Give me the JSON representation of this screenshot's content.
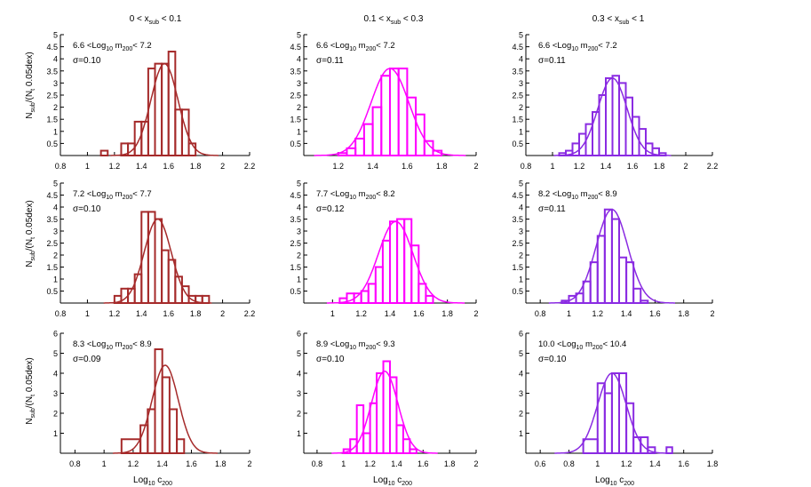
{
  "figure": {
    "ylabel_main": "N",
    "ylabel_sub": "sub",
    "ylabel_tail": "/(N",
    "ylabel_sub2": "t",
    "ylabel_end": " 0.05dex)",
    "xlabel_main": "Log",
    "xlabel_sub": "10",
    "xlabel_end": " c",
    "xlabel_sub2": "200"
  },
  "column_titles": [
    {
      "pre": "0 < x",
      "sub": "sub",
      "post": " < 0.1"
    },
    {
      "pre": "0.1 < x",
      "sub": "sub",
      "post": " < 0.3"
    },
    {
      "pre": "0.3 < x",
      "sub": "sub",
      "post": " < 1"
    }
  ],
  "colors": {
    "col0": "#a52a2a",
    "col1": "#ff00ff",
    "col2": "#8a2be2"
  },
  "chart_data": [
    {
      "type": "bar",
      "row": 0,
      "col": 0,
      "xlim": [
        0.8,
        2.2
      ],
      "ylim": [
        0,
        5
      ],
      "xticks": [
        0.8,
        1,
        1.2,
        1.4,
        1.6,
        1.8,
        2,
        2.2
      ],
      "yticks": [
        0.5,
        1,
        1.5,
        2,
        2.5,
        3,
        3.5,
        4,
        4.5,
        5
      ],
      "range_label": {
        "lo": "6.6 <Log",
        "lo_sub": "10",
        "mid": " m",
        "mid_sub": "200",
        "hi": "< 7.2"
      },
      "sigma": "σ=0.10",
      "sigma_value": 0.1,
      "mean": 1.57,
      "amp": 3.8,
      "bin_edges": [
        1.1,
        1.15,
        1.2,
        1.25,
        1.3,
        1.35,
        1.4,
        1.45,
        1.5,
        1.55,
        1.6,
        1.65,
        1.7,
        1.75,
        1.8
      ],
      "values": [
        0.2,
        0,
        0,
        0.5,
        0.5,
        1.4,
        1.4,
        3.6,
        3.8,
        3.8,
        4.3,
        1.9,
        1.9,
        0.5
      ]
    },
    {
      "type": "bar",
      "row": 0,
      "col": 1,
      "xlim": [
        1,
        2
      ],
      "ylim": [
        0,
        5
      ],
      "xticks": [
        1.2,
        1.4,
        1.6,
        1.8,
        2
      ],
      "yticks": [
        0.5,
        1,
        1.5,
        2,
        2.5,
        3,
        3.5,
        4,
        4.5,
        5
      ],
      "range_label": {
        "lo": "6.6 <Log",
        "lo_sub": "10",
        "mid": " m",
        "mid_sub": "200",
        "hi": "< 7.2"
      },
      "sigma": "σ=0.11",
      "sigma_value": 0.11,
      "mean": 1.5,
      "amp": 3.6,
      "bin_edges": [
        1.2,
        1.25,
        1.3,
        1.35,
        1.4,
        1.45,
        1.5,
        1.55,
        1.6,
        1.65,
        1.7,
        1.75,
        1.8
      ],
      "values": [
        0.1,
        0.3,
        0.7,
        1.3,
        2.0,
        3.3,
        3.6,
        3.6,
        2.4,
        1.7,
        0.6,
        0.2
      ]
    },
    {
      "type": "bar",
      "row": 0,
      "col": 2,
      "xlim": [
        0.8,
        2.2
      ],
      "ylim": [
        0,
        5
      ],
      "xticks": [
        0.8,
        1,
        1.2,
        1.4,
        1.6,
        1.8,
        2,
        2.2
      ],
      "yticks": [
        0.5,
        1,
        1.5,
        2,
        2.5,
        3,
        3.5,
        4,
        4.5,
        5
      ],
      "range_label": {
        "lo": "6.6 <Log",
        "lo_sub": "10",
        "mid": " m",
        "mid_sub": "200",
        "hi": "< 7.2"
      },
      "sigma": "σ=0.11",
      "sigma_value": 0.11,
      "mean": 1.45,
      "amp": 3.2,
      "bin_edges": [
        1.05,
        1.1,
        1.15,
        1.2,
        1.25,
        1.3,
        1.35,
        1.4,
        1.45,
        1.5,
        1.55,
        1.6,
        1.65,
        1.7,
        1.75,
        1.8,
        1.85
      ],
      "values": [
        0.1,
        0.2,
        0.5,
        0.9,
        1.3,
        1.8,
        2.5,
        3.2,
        3.3,
        3.0,
        2.4,
        1.6,
        1.1,
        0.5,
        0.3,
        0.1
      ]
    },
    {
      "type": "bar",
      "row": 1,
      "col": 0,
      "xlim": [
        0.8,
        2.2
      ],
      "ylim": [
        0,
        5
      ],
      "xticks": [
        0.8,
        1,
        1.2,
        1.4,
        1.6,
        1.8,
        2,
        2.2
      ],
      "yticks": [
        0.5,
        1,
        1.5,
        2,
        2.5,
        3,
        3.5,
        4,
        4.5,
        5
      ],
      "range_label": {
        "lo": "7.2 <Log",
        "lo_sub": "10",
        "mid": " m",
        "mid_sub": "200",
        "hi": "< 7.7"
      },
      "sigma": "σ=0.10",
      "sigma_value": 0.1,
      "mean": 1.52,
      "amp": 3.5,
      "bin_edges": [
        1.2,
        1.25,
        1.3,
        1.35,
        1.4,
        1.45,
        1.5,
        1.55,
        1.6,
        1.65,
        1.7,
        1.75,
        1.8,
        1.85,
        1.9
      ],
      "values": [
        0.3,
        0.6,
        0.6,
        1.2,
        3.8,
        3.8,
        3.5,
        2.2,
        1.8,
        1.1,
        0.7,
        0.3,
        0.3,
        0.3
      ]
    },
    {
      "type": "bar",
      "row": 1,
      "col": 1,
      "xlim": [
        0.8,
        2
      ],
      "ylim": [
        0,
        5
      ],
      "xticks": [
        1,
        1.2,
        1.4,
        1.6,
        1.8,
        2
      ],
      "yticks": [
        0.5,
        1,
        1.5,
        2,
        2.5,
        3,
        3.5,
        4,
        4.5,
        5
      ],
      "range_label": {
        "lo": "7.7 <Log",
        "lo_sub": "10",
        "mid": " m",
        "mid_sub": "200",
        "hi": "< 8.2"
      },
      "sigma": "σ=0.12",
      "sigma_value": 0.12,
      "mean": 1.44,
      "amp": 3.4,
      "bin_edges": [
        1.05,
        1.1,
        1.15,
        1.2,
        1.25,
        1.3,
        1.35,
        1.4,
        1.45,
        1.5,
        1.55,
        1.6,
        1.65,
        1.7
      ],
      "values": [
        0.2,
        0.4,
        0.4,
        0.5,
        0.8,
        1.5,
        2.6,
        3.4,
        3.5,
        3.5,
        2.4,
        0.8,
        0.3
      ]
    },
    {
      "type": "bar",
      "row": 1,
      "col": 2,
      "xlim": [
        0.7,
        2
      ],
      "ylim": [
        0,
        5
      ],
      "xticks": [
        0.8,
        1,
        1.2,
        1.4,
        1.6,
        1.8,
        2
      ],
      "yticks": [
        0.5,
        1,
        1.5,
        2,
        2.5,
        3,
        3.5,
        4,
        4.5,
        5
      ],
      "range_label": {
        "lo": "8.2 <Log",
        "lo_sub": "10",
        "mid": " m",
        "mid_sub": "200",
        "hi": "< 8.9"
      },
      "sigma": "σ=0.11",
      "sigma_value": 0.11,
      "mean": 1.3,
      "amp": 3.9,
      "bin_edges": [
        0.95,
        1.0,
        1.05,
        1.1,
        1.15,
        1.2,
        1.25,
        1.3,
        1.35,
        1.4,
        1.45,
        1.5,
        1.55
      ],
      "values": [
        0.1,
        0.3,
        0.4,
        0.9,
        1.7,
        2.8,
        3.9,
        3.5,
        1.9,
        1.7,
        0.6,
        0.1
      ]
    },
    {
      "type": "bar",
      "row": 2,
      "col": 0,
      "xlim": [
        0.7,
        2
      ],
      "ylim": [
        0,
        6
      ],
      "xticks": [
        0.8,
        1,
        1.2,
        1.4,
        1.6,
        1.8,
        2
      ],
      "yticks": [
        1,
        2,
        3,
        4,
        5,
        6
      ],
      "range_label": {
        "lo": "8.3 <Log",
        "lo_sub": "10",
        "mid": " m",
        "mid_sub": "200",
        "hi": "< 8.9"
      },
      "sigma": "σ=0.09",
      "sigma_value": 0.09,
      "mean": 1.42,
      "amp": 4.4,
      "bin_edges": [
        1.12,
        1.25,
        1.3,
        1.35,
        1.4,
        1.45,
        1.5,
        1.55
      ],
      "values": [
        0.7,
        1.4,
        2.2,
        5.2,
        3.8,
        2.2,
        0.7
      ]
    },
    {
      "type": "bar",
      "row": 2,
      "col": 1,
      "xlim": [
        0.7,
        2
      ],
      "ylim": [
        0,
        6
      ],
      "xticks": [
        0.8,
        1,
        1.2,
        1.4,
        1.6,
        1.8,
        2
      ],
      "yticks": [
        1,
        2,
        3,
        4,
        5,
        6
      ],
      "range_label": {
        "lo": "8.9 <Log",
        "lo_sub": "10",
        "mid": " m",
        "mid_sub": "200",
        "hi": "< 9.3"
      },
      "sigma": "σ=0.10",
      "sigma_value": 0.1,
      "mean": 1.31,
      "amp": 4.1,
      "bin_edges": [
        1.0,
        1.05,
        1.1,
        1.15,
        1.2,
        1.25,
        1.3,
        1.35,
        1.4,
        1.45,
        1.5,
        1.55
      ],
      "values": [
        0.2,
        0.7,
        2.4,
        1.0,
        2.5,
        4.0,
        4.6,
        3.8,
        1.4,
        0.7,
        0.2
      ]
    },
    {
      "type": "bar",
      "row": 2,
      "col": 2,
      "xlim": [
        0.5,
        1.8
      ],
      "ylim": [
        0,
        6
      ],
      "xticks": [
        0.6,
        0.8,
        1,
        1.2,
        1.4,
        1.6,
        1.8
      ],
      "yticks": [
        1,
        2,
        3,
        4,
        5,
        6
      ],
      "range_label": {
        "lo": "10.0 <Log",
        "lo_sub": "10",
        "mid": " m",
        "mid_sub": "200",
        "hi": "< 10.4"
      },
      "sigma": "σ=0.10",
      "sigma_value": 0.1,
      "mean": 1.1,
      "amp": 4.0,
      "bin_edges": [
        0.9,
        1.0,
        1.05,
        1.1,
        1.15,
        1.2,
        1.25,
        1.3,
        1.35,
        1.4,
        1.45,
        1.48,
        1.52
      ],
      "values": [
        0.7,
        3.5,
        3.0,
        4.0,
        4.0,
        2.5,
        0.8,
        0.8,
        0.3,
        0.0,
        0.0,
        0.3
      ]
    }
  ]
}
